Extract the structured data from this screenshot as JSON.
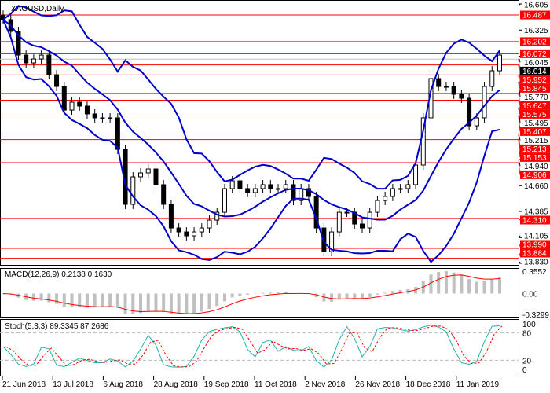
{
  "chart_data": {
    "type": "candlestick",
    "title": "XAGUSD,Daily",
    "ylim": [
      13.83,
      16.605
    ],
    "y_ticks": [
      "16.605",
      "16.325",
      "16.045",
      "15.770",
      "15.495",
      "15.215",
      "14.940",
      "14.660",
      "14.385",
      "14.105",
      "13.830"
    ],
    "x_ticks": [
      "21 Jun 2018",
      "13 Jul 2018",
      "6 Aug 2018",
      "28 Aug 2018",
      "19 Sep 2018",
      "11 Oct 2018",
      "2 Nov 2018",
      "26 Nov 2018",
      "18 Dec 2018",
      "11 Jan 2019"
    ],
    "current_price": "16.014",
    "levels": [
      "16.487",
      "16.202",
      "16.072",
      "15.952",
      "15.845",
      "15.647",
      "15.575",
      "15.407",
      "15.213",
      "15.153",
      "14.906",
      "14.310",
      "13.990",
      "13.884"
    ],
    "closes": [
      16.437,
      16.311,
      16.058,
      15.974,
      16.016,
      16.058,
      15.848,
      15.722,
      15.469,
      15.554,
      15.512,
      15.428,
      15.386,
      15.386,
      15.386,
      15.049,
      14.461,
      14.755,
      14.797,
      14.839,
      14.671,
      14.461,
      14.208,
      14.166,
      14.124,
      14.166,
      14.208,
      14.292,
      14.376,
      14.629,
      14.713,
      14.629,
      14.587,
      14.629,
      14.671,
      14.629,
      14.629,
      14.671,
      14.502,
      14.629,
      14.545,
      14.208,
      13.955,
      14.166,
      14.376,
      14.376,
      14.25,
      14.208,
      14.376,
      14.502,
      14.545,
      14.629,
      14.629,
      14.671,
      14.881,
      15.386,
      15.806,
      15.722,
      15.722,
      15.638,
      15.596,
      15.301,
      15.386,
      15.722,
      15.89,
      16.058
    ],
    "indicators": {
      "bollinger": {
        "color": "#0000cc"
      },
      "macd": {
        "label": "MACD(12,26,9) 0.2138 0.1630",
        "ticks": [
          "0.3552",
          "0.00",
          "-0.3299"
        ],
        "ylim": [
          -0.3299,
          0.3552
        ],
        "histogram_color": "#c0c0c0",
        "signal_color": "#ff0000"
      },
      "stochastic": {
        "label": "Stoch(5,3,3) 89.3345 87.2686",
        "ticks": [
          "100",
          "80",
          "20",
          "0"
        ],
        "main_color": "#20b2aa",
        "signal_color": "#ff0000"
      }
    },
    "colors": {
      "level_line": "#ff0000",
      "level_label_bg": "#ff0000",
      "candle": "#000000",
      "current_label_bg": "#000000"
    }
  }
}
